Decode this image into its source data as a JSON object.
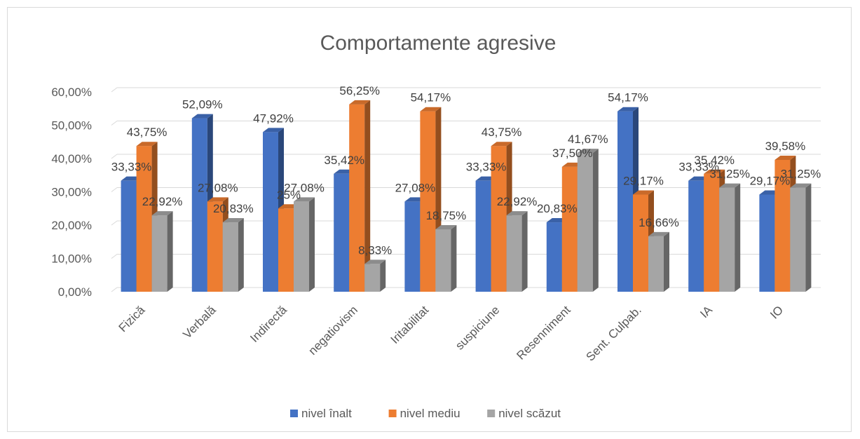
{
  "chart_data": {
    "type": "bar",
    "title": "Comportamente agresive",
    "xlabel": "",
    "ylabel": "",
    "categories": [
      "Fizică",
      "Verbală",
      "Indirectă",
      "negatiovism",
      "Iritabilitat",
      "suspiciune",
      "Resenniment",
      "Sent. Culpab.",
      "IA",
      "IO"
    ],
    "series": [
      {
        "name": "nivel înalt",
        "color": "#4472c4",
        "values": [
          33.33,
          52.09,
          47.92,
          35.42,
          27.08,
          33.33,
          20.83,
          54.17,
          33.33,
          29.17
        ],
        "labels": [
          "33,33%",
          "52,09%",
          "47,92%",
          "35,42%",
          "27,08%",
          "33,33%",
          "20,83%",
          "54,17%",
          "33,33%",
          "29,17%"
        ]
      },
      {
        "name": "nivel mediu",
        "color": "#ed7d31",
        "values": [
          43.75,
          27.08,
          25,
          56.25,
          54.17,
          43.75,
          37.5,
          29.17,
          35.42,
          39.58
        ],
        "labels": [
          "43,75%",
          "27,08%",
          "25%",
          "56,25%",
          "54,17%",
          "43,75%",
          "37,50%",
          "29,17%",
          "35,42%",
          "39,58%"
        ]
      },
      {
        "name": "nivel scăzut",
        "color": "#a5a5a5",
        "values": [
          22.92,
          20.83,
          27.08,
          8.33,
          18.75,
          22.92,
          41.67,
          16.66,
          31.25,
          31.25
        ],
        "labels": [
          "22,92%",
          "20,83%",
          "27,08%",
          "8,33%",
          "18,75%",
          "22,92%",
          "41,67%",
          "16,66%",
          "31,25%",
          "31,25%"
        ]
      }
    ],
    "ylim": [
      0,
      60
    ],
    "yticks": [
      "0,00%",
      "10,00%",
      "20,00%",
      "30,00%",
      "40,00%",
      "50,00%",
      "60,00%"
    ],
    "grid": true,
    "legend_position": "bottom",
    "style": "3d-clustered-column"
  }
}
